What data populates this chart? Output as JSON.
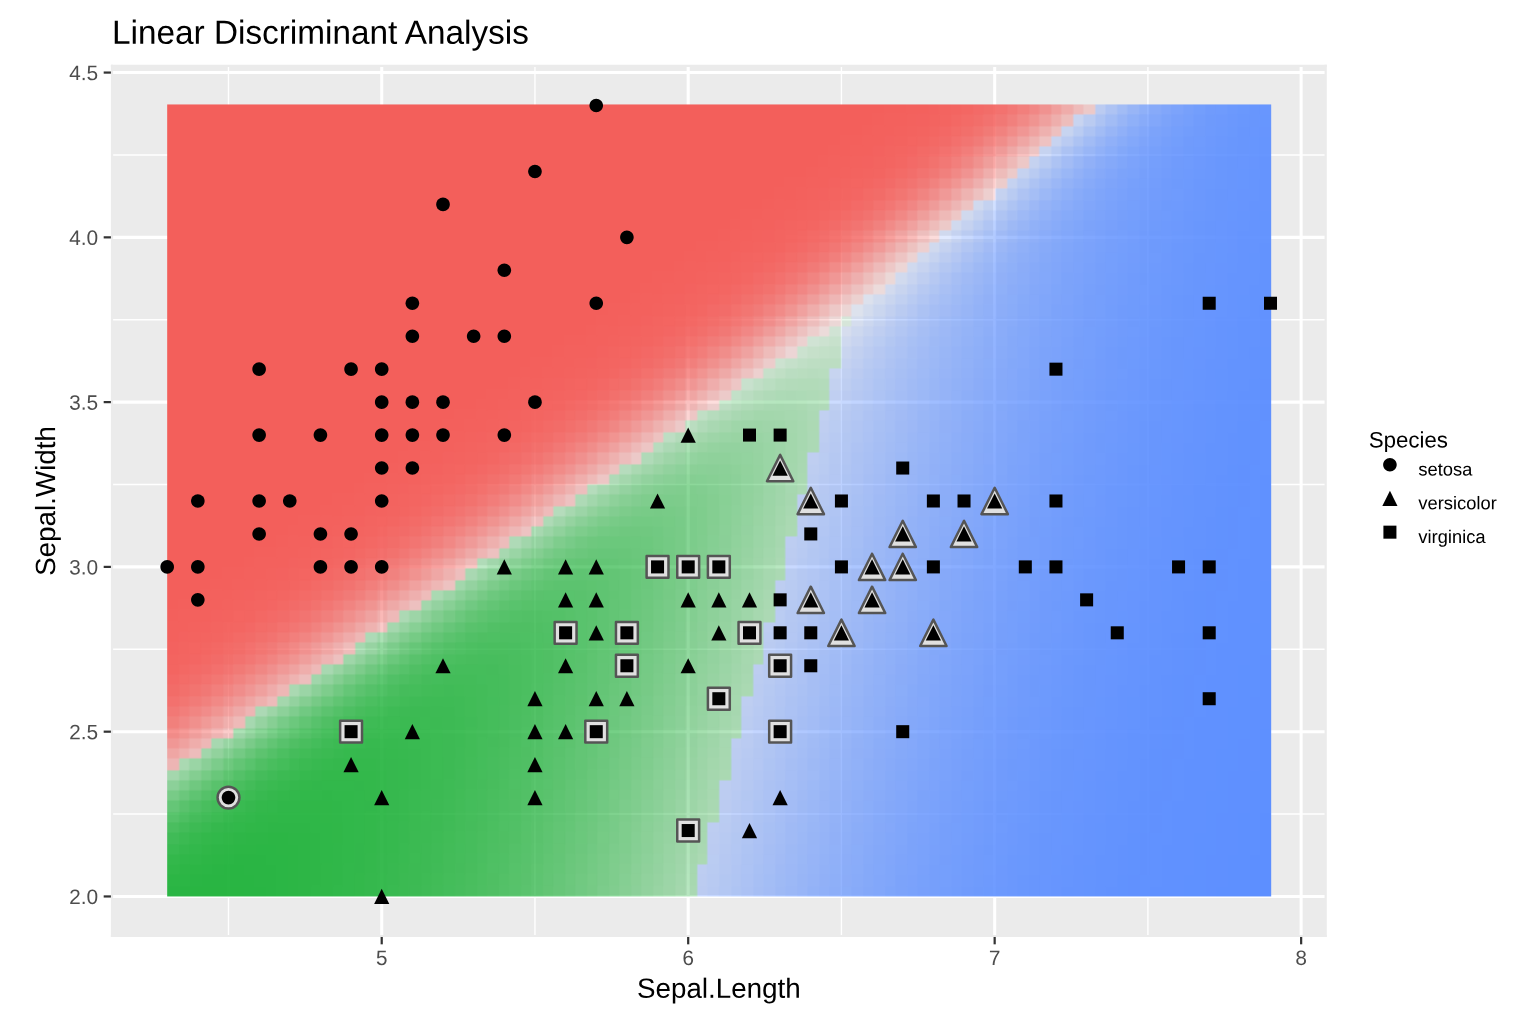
{
  "chart_data": {
    "type": "scatter",
    "title": "Linear Discriminant Analysis",
    "xlabel": "Sepal.Length",
    "ylabel": "Sepal.Width",
    "legend_title": "Species",
    "colors": [
      "#f35e5a",
      "#1fb23a",
      "#5a8dff"
    ],
    "xlim": [
      4.12,
      8.08
    ],
    "ylim": [
      1.88,
      4.52
    ],
    "xticks": [
      5,
      6,
      7,
      8
    ],
    "yticks": [
      {
        "value": 2,
        "label": "2.0"
      },
      2.5,
      {
        "value": 3,
        "label": "3.0"
      },
      3.5,
      {
        "value": 4,
        "label": "4.0"
      },
      4.5
    ],
    "grid": true,
    "legend": "right",
    "series": [
      {
        "marker": "circle",
        "color": "#e0e0e0",
        "x": [
          4.5
        ],
        "values": [
          2.3
        ]
      },
      {
        "marker": "triangle",
        "color": "#e0e0e0",
        "x": [
          6.3,
          6.4,
          6.4,
          6.5,
          6.6,
          6.6,
          6.7,
          6.7,
          6.8,
          6.9,
          7.0
        ],
        "values": [
          3.3,
          2.9,
          3.2,
          2.8,
          2.9,
          3.0,
          3.0,
          3.1,
          2.8,
          3.1,
          3.2
        ]
      },
      {
        "marker": "square",
        "color": "#e0e0e0",
        "x": [
          4.9,
          5.6,
          5.7,
          5.8,
          5.8,
          5.9,
          6.0,
          6.0,
          6.1,
          6.1,
          6.2,
          6.3,
          6.3
        ],
        "values": [
          2.5,
          2.8,
          2.5,
          2.7,
          2.8,
          3.0,
          2.2,
          3.0,
          2.6,
          3.0,
          2.8,
          2.5,
          2.7
        ]
      },
      {
        "name": "setosa",
        "marker": "circle",
        "color": "#000000",
        "x": [
          4.3,
          4.4,
          4.4,
          4.4,
          4.5,
          4.6,
          4.6,
          4.6,
          4.6,
          4.7,
          4.8,
          4.8,
          4.8,
          4.9,
          4.9,
          4.9,
          5.0,
          5.0,
          5.0,
          5.0,
          5.0,
          5.0,
          5.1,
          5.1,
          5.1,
          5.1,
          5.1,
          5.2,
          5.2,
          5.2,
          5.3,
          5.4,
          5.4,
          5.4,
          5.5,
          5.5,
          5.7,
          5.7,
          5.8
        ],
        "values": [
          3.0,
          2.9,
          3.0,
          3.2,
          2.3,
          3.1,
          3.2,
          3.4,
          3.6,
          3.2,
          3.0,
          3.1,
          3.4,
          3.0,
          3.1,
          3.6,
          3.0,
          3.2,
          3.3,
          3.4,
          3.5,
          3.6,
          3.3,
          3.4,
          3.5,
          3.7,
          3.8,
          3.4,
          3.5,
          4.1,
          3.7,
          3.4,
          3.7,
          3.9,
          3.5,
          4.2,
          3.8,
          4.4,
          4.0
        ]
      },
      {
        "name": "versicolor",
        "marker": "triangle",
        "color": "#000000",
        "x": [
          4.9,
          5.0,
          5.0,
          5.1,
          5.2,
          5.4,
          5.5,
          5.5,
          5.5,
          5.5,
          5.6,
          5.6,
          5.6,
          5.6,
          5.7,
          5.7,
          5.7,
          5.7,
          5.8,
          5.9,
          6.0,
          6.0,
          6.0,
          6.1,
          6.1,
          6.2,
          6.2,
          6.3,
          6.3,
          6.4,
          6.4,
          6.5,
          6.6,
          6.6,
          6.7,
          6.7,
          6.8,
          6.9,
          7.0
        ],
        "values": [
          2.4,
          2.0,
          2.3,
          2.5,
          2.7,
          3.0,
          2.3,
          2.4,
          2.5,
          2.6,
          2.5,
          2.7,
          2.9,
          3.0,
          2.6,
          2.8,
          2.9,
          3.0,
          2.6,
          3.2,
          2.7,
          2.9,
          3.4,
          2.8,
          2.9,
          2.2,
          2.9,
          2.3,
          3.3,
          2.9,
          3.2,
          2.8,
          2.9,
          3.0,
          3.0,
          3.1,
          2.8,
          3.1,
          3.2
        ]
      },
      {
        "name": "virginica",
        "marker": "square",
        "color": "#000000",
        "x": [
          4.9,
          5.6,
          5.7,
          5.8,
          5.8,
          5.9,
          6.0,
          6.0,
          6.1,
          6.1,
          6.2,
          6.2,
          6.3,
          6.3,
          6.3,
          6.3,
          6.3,
          6.4,
          6.4,
          6.4,
          6.5,
          6.5,
          6.7,
          6.7,
          6.8,
          6.8,
          6.9,
          7.1,
          7.2,
          7.2,
          7.2,
          7.3,
          7.4,
          7.6,
          7.7,
          7.7,
          7.7,
          7.7,
          7.9
        ],
        "values": [
          2.5,
          2.8,
          2.5,
          2.7,
          2.8,
          3.0,
          2.2,
          3.0,
          2.6,
          3.0,
          2.8,
          3.4,
          2.5,
          2.7,
          2.8,
          2.9,
          3.4,
          2.7,
          2.8,
          3.1,
          3.0,
          3.2,
          2.5,
          3.3,
          3.0,
          3.2,
          3.2,
          3.0,
          3.0,
          3.2,
          3.6,
          2.9,
          2.8,
          3.0,
          2.6,
          2.8,
          3.0,
          3.8,
          3.8
        ]
      }
    ]
  }
}
